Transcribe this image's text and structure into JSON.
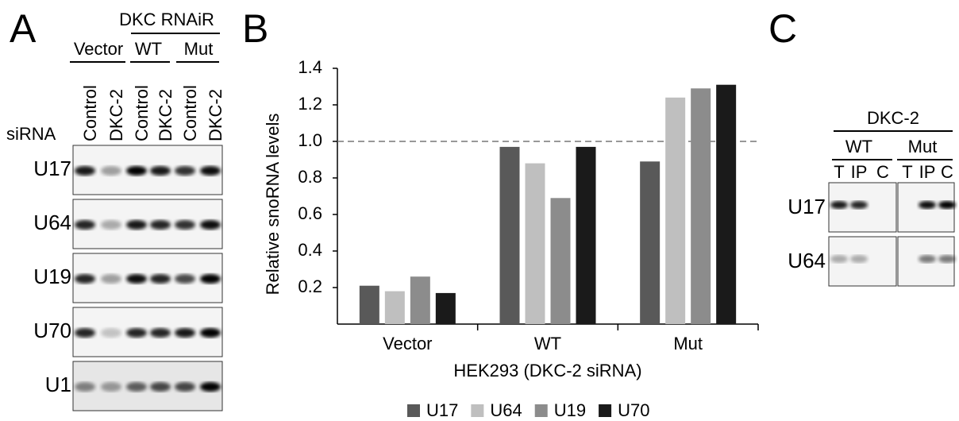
{
  "panel_a": {
    "label": "A",
    "group_header": "DKC RNAiR",
    "groups": [
      "Vector",
      "WT",
      "Mut"
    ],
    "lanes": [
      "Control",
      "DKC-2",
      "Control",
      "DKC-2",
      "Control",
      "DKC-2"
    ],
    "lane_title": "siRNA",
    "rows": [
      "U17",
      "U64",
      "U19",
      "U70",
      "U1"
    ]
  },
  "chart_data": {
    "type": "bar",
    "panel_label": "B",
    "xlabel": "HEK293 (DKC-2 siRNA)",
    "ylabel": "Relative snoRNA levels",
    "categories": [
      "Vector",
      "WT",
      "Mut"
    ],
    "series": [
      {
        "name": "U17",
        "color": "#595959",
        "values": [
          0.21,
          0.97,
          0.89
        ]
      },
      {
        "name": "U64",
        "color": "#bfbfbf",
        "values": [
          0.18,
          0.88,
          1.24
        ]
      },
      {
        "name": "U19",
        "color": "#8c8c8c",
        "values": [
          0.26,
          0.69,
          1.29
        ]
      },
      {
        "name": "U70",
        "color": "#1a1a1a",
        "values": [
          0.17,
          0.97,
          1.31
        ]
      }
    ],
    "ylim": [
      0,
      1.4
    ],
    "yticks": [
      0.2,
      0.4,
      0.6,
      0.8,
      {
        "value": 1,
        "label": "1.0"
      },
      1.2,
      1.4
    ],
    "reference_line": 1,
    "legend": "bottom"
  },
  "panel_c": {
    "label": "C",
    "header": "DKC-2",
    "groups": [
      "WT",
      "Mut"
    ],
    "lanes": [
      "T",
      "IP",
      "C",
      "T",
      "IP",
      "C"
    ],
    "rows": [
      "U17",
      "U64"
    ]
  }
}
